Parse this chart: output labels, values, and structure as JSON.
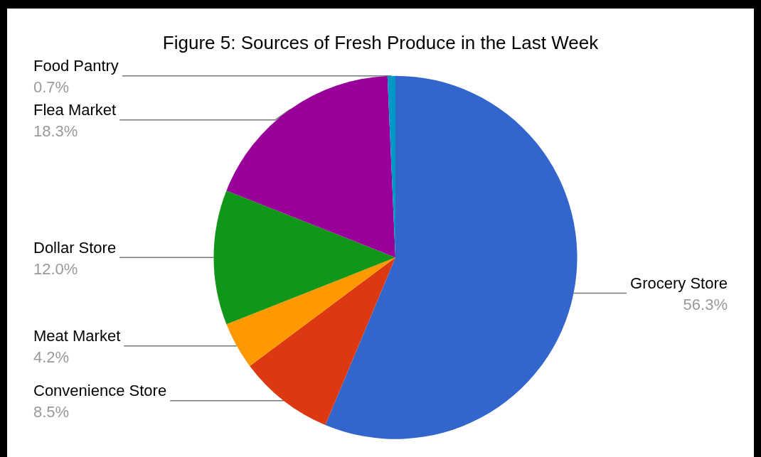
{
  "chart_data": {
    "type": "pie",
    "title": "Figure 5: Sources of Fresh Produce in the Last Week",
    "categories": [
      "Grocery Store",
      "Convenience Store",
      "Meat Market",
      "Dollar Store",
      "Flea Market",
      "Food Pantry"
    ],
    "values": [
      56.3,
      8.5,
      4.2,
      12.0,
      18.3,
      0.7
    ],
    "colors": [
      "#3366cc",
      "#dc3912",
      "#ff9900",
      "#109618",
      "#990099",
      "#0099c6"
    ],
    "value_labels": [
      "56.3%",
      "8.5%",
      "4.2%",
      "12.0%",
      "18.3%",
      "0.7%"
    ],
    "legend": false
  }
}
